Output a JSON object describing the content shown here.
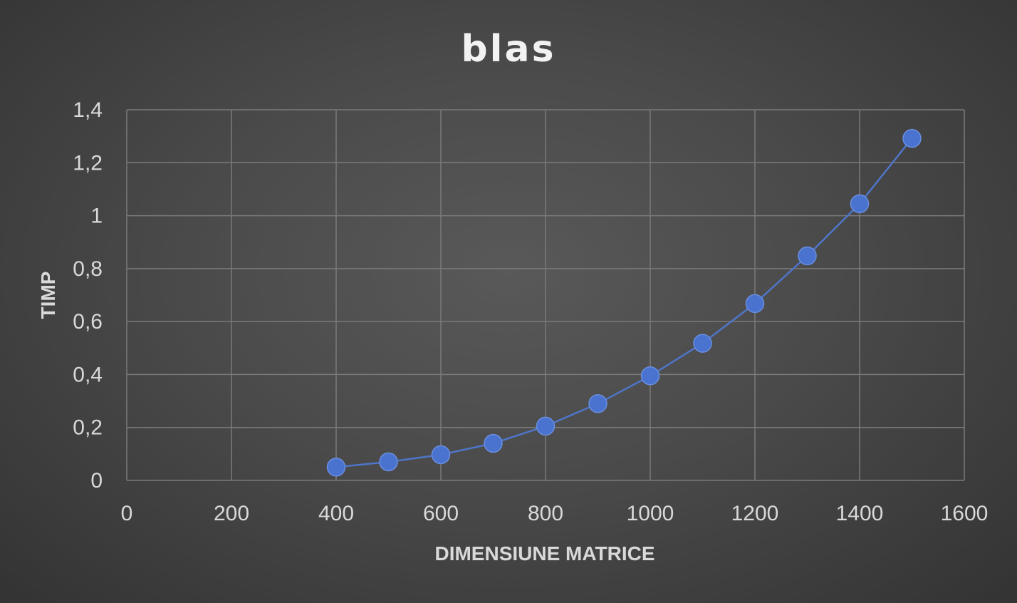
{
  "chart_data": {
    "type": "scatter",
    "title": "blas",
    "xlabel": "DIMENSIUNE MATRICE",
    "ylabel": "TIMP",
    "xlim": [
      0,
      1600
    ],
    "ylim": [
      0,
      1.4
    ],
    "x_ticks": [
      "0",
      "200",
      "400",
      "600",
      "800",
      "1000",
      "1200",
      "1400",
      "1600"
    ],
    "y_ticks": [
      "0",
      "0,2",
      "0,4",
      "0,6",
      "0,8",
      "1",
      "1,2",
      "1,4"
    ],
    "grid": true,
    "legend": "none",
    "series": [
      {
        "color": "#4472c4",
        "x": [
          400,
          500,
          600,
          700,
          800,
          900,
          1000,
          1100,
          1200,
          1300,
          1400,
          1500
        ],
        "y": [
          0.05,
          0.07,
          0.097,
          0.14,
          0.205,
          0.29,
          0.395,
          0.518,
          0.668,
          0.848,
          1.045,
          1.292
        ]
      }
    ]
  }
}
